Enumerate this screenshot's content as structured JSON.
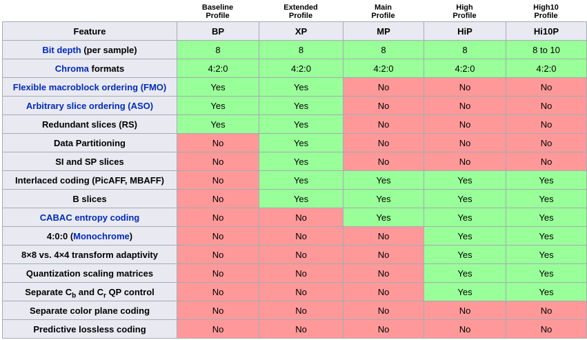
{
  "feature_header": "Feature",
  "profiles": [
    {
      "line1": "Baseline",
      "line2": "Profile",
      "abbr": "BP"
    },
    {
      "line1": "Extended",
      "line2": "Profile",
      "abbr": "XP"
    },
    {
      "line1": "Main",
      "line2": "Profile",
      "abbr": "MP"
    },
    {
      "line1": "High",
      "line2": "Profile",
      "abbr": "HiP"
    },
    {
      "line1": "High10",
      "line2": "Profile",
      "abbr": "Hi10P"
    }
  ],
  "colors": {
    "yes_bg": "#99ff99",
    "no_bg": "#ff9999",
    "header_bg": "#e9e9f1",
    "link_blue": "#002bb8",
    "cell_border": "#a4abb2"
  },
  "rows": [
    {
      "feature": [
        {
          "text": "Bit depth",
          "link": true
        },
        {
          "text": " (per sample)",
          "link": false
        }
      ],
      "values": [
        "8",
        "8",
        "8",
        "8",
        "8 to 10"
      ],
      "status": [
        "y",
        "y",
        "y",
        "y",
        "y"
      ]
    },
    {
      "feature": [
        {
          "text": "Chroma",
          "link": true
        },
        {
          "text": " formats",
          "link": false
        }
      ],
      "values": [
        "4:2:0",
        "4:2:0",
        "4:2:0",
        "4:2:0",
        "4:2:0"
      ],
      "status": [
        "y",
        "y",
        "y",
        "y",
        "y"
      ]
    },
    {
      "feature": [
        {
          "text": "Flexible macroblock ordering (FMO)",
          "link": true
        }
      ],
      "values": [
        "Yes",
        "Yes",
        "No",
        "No",
        "No"
      ],
      "status": [
        "y",
        "y",
        "n",
        "n",
        "n"
      ]
    },
    {
      "feature": [
        {
          "text": "Arbitrary slice ordering (ASO)",
          "link": true
        }
      ],
      "values": [
        "Yes",
        "Yes",
        "No",
        "No",
        "No"
      ],
      "status": [
        "y",
        "y",
        "n",
        "n",
        "n"
      ]
    },
    {
      "feature": [
        {
          "text": "Redundant slices (RS)",
          "link": false
        }
      ],
      "values": [
        "Yes",
        "Yes",
        "No",
        "No",
        "No"
      ],
      "status": [
        "y",
        "y",
        "n",
        "n",
        "n"
      ]
    },
    {
      "feature": [
        {
          "text": "Data Partitioning",
          "link": false
        }
      ],
      "values": [
        "No",
        "Yes",
        "No",
        "No",
        "No"
      ],
      "status": [
        "n",
        "y",
        "n",
        "n",
        "n"
      ]
    },
    {
      "feature": [
        {
          "text": "SI and SP slices",
          "link": false
        }
      ],
      "values": [
        "No",
        "Yes",
        "No",
        "No",
        "No"
      ],
      "status": [
        "n",
        "y",
        "n",
        "n",
        "n"
      ]
    },
    {
      "feature": [
        {
          "text": "Interlaced coding (PicAFF, MBAFF)",
          "link": false
        }
      ],
      "values": [
        "No",
        "Yes",
        "Yes",
        "Yes",
        "Yes"
      ],
      "status": [
        "n",
        "y",
        "y",
        "y",
        "y"
      ]
    },
    {
      "feature": [
        {
          "text": "B slices",
          "link": false
        }
      ],
      "values": [
        "No",
        "Yes",
        "Yes",
        "Yes",
        "Yes"
      ],
      "status": [
        "n",
        "y",
        "y",
        "y",
        "y"
      ]
    },
    {
      "feature": [
        {
          "text": "CABAC entropy coding",
          "link": true
        }
      ],
      "values": [
        "No",
        "No",
        "Yes",
        "Yes",
        "Yes"
      ],
      "status": [
        "n",
        "n",
        "y",
        "y",
        "y"
      ]
    },
    {
      "feature": [
        {
          "text": "4:0:0 (",
          "link": false
        },
        {
          "text": "Monochrome",
          "link": true
        },
        {
          "text": ")",
          "link": false
        }
      ],
      "values": [
        "No",
        "No",
        "No",
        "Yes",
        "Yes"
      ],
      "status": [
        "n",
        "n",
        "n",
        "y",
        "y"
      ]
    },
    {
      "feature": [
        {
          "text": "8×8 vs. 4×4 transform adaptivity",
          "link": false
        }
      ],
      "values": [
        "No",
        "No",
        "No",
        "Yes",
        "Yes"
      ],
      "status": [
        "n",
        "n",
        "n",
        "y",
        "y"
      ]
    },
    {
      "feature": [
        {
          "text": "Quantization scaling matrices",
          "link": false
        }
      ],
      "values": [
        "No",
        "No",
        "No",
        "Yes",
        "Yes"
      ],
      "status": [
        "n",
        "n",
        "n",
        "y",
        "y"
      ]
    },
    {
      "feature": [
        {
          "text": "Separate C",
          "link": false
        },
        {
          "text": "b",
          "link": false,
          "sub": true
        },
        {
          "text": " and C",
          "link": false
        },
        {
          "text": "r",
          "link": false,
          "sub": true
        },
        {
          "text": " QP control",
          "link": false
        }
      ],
      "values": [
        "No",
        "No",
        "No",
        "Yes",
        "Yes"
      ],
      "status": [
        "n",
        "n",
        "n",
        "y",
        "y"
      ]
    },
    {
      "feature": [
        {
          "text": "Separate color plane coding",
          "link": false
        }
      ],
      "values": [
        "No",
        "No",
        "No",
        "No",
        "No"
      ],
      "status": [
        "n",
        "n",
        "n",
        "n",
        "n"
      ]
    },
    {
      "feature": [
        {
          "text": "Predictive lossless coding",
          "link": false
        }
      ],
      "values": [
        "No",
        "No",
        "No",
        "No",
        "No"
      ],
      "status": [
        "n",
        "n",
        "n",
        "n",
        "n"
      ]
    }
  ]
}
